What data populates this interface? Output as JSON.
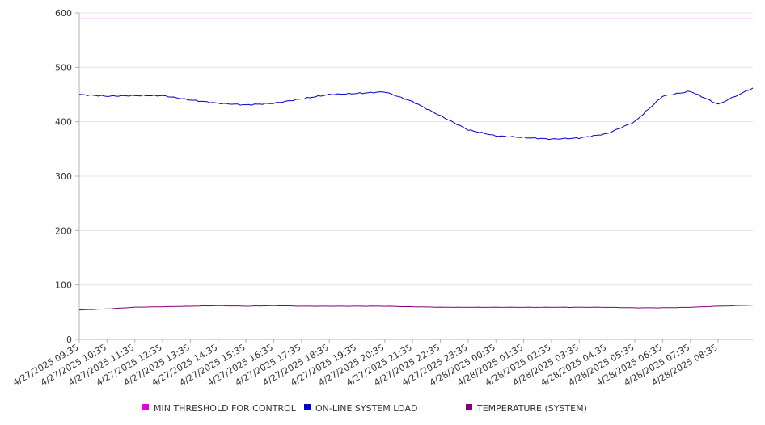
{
  "chart_data": {
    "type": "line",
    "title": "",
    "xlabel": "",
    "ylabel": "",
    "ylim": [
      0,
      600
    ],
    "yticks": [
      0,
      100,
      200,
      300,
      400,
      500,
      600
    ],
    "grid": true,
    "legend_position": "bottom",
    "x_tick_labels": [
      "4/27/2025 09:35",
      "4/27/2025 10:35",
      "4/27/2025 11:35",
      "4/27/2025 12:35",
      "4/27/2025 13:35",
      "4/27/2025 14:35",
      "4/27/2025 15:35",
      "4/27/2025 16:35",
      "4/27/2025 17:35",
      "4/27/2025 18:35",
      "4/27/2025 19:35",
      "4/27/2025 20:35",
      "4/27/2025 21:35",
      "4/27/2025 22:35",
      "4/27/2025 23:35",
      "4/28/2025 00:35",
      "4/28/2025 01:35",
      "4/28/2025 02:35",
      "4/28/2025 03:35",
      "4/28/2025 04:35",
      "4/28/2025 05:35",
      "4/28/2025 06:35",
      "4/28/2025 07:35",
      "4/28/2025 08:35"
    ],
    "x_hours": [
      0,
      1,
      2,
      3,
      4,
      5,
      6,
      7,
      8,
      9,
      10,
      11,
      12,
      13,
      14,
      15,
      16,
      17,
      18,
      19,
      20,
      21,
      22,
      23,
      24.25
    ],
    "series": [
      {
        "name": "MIN THRESHOLD FOR CONTROL",
        "color": "#e600e6",
        "values": [
          589,
          589,
          589,
          589,
          589,
          589,
          589,
          589,
          589,
          589,
          589,
          589,
          589,
          589,
          589,
          589,
          589,
          589,
          589,
          589,
          589,
          589,
          589,
          589,
          589
        ]
      },
      {
        "name": "ON-LINE SYSTEM LOAD",
        "color": "#0000cc",
        "values": [
          450,
          447,
          448,
          448,
          440,
          434,
          431,
          434,
          442,
          450,
          452,
          455,
          437,
          411,
          385,
          374,
          371,
          368,
          370,
          378,
          400,
          447,
          456,
          432,
          462
        ]
      },
      {
        "name": "TEMPERATURE (SYSTEM)",
        "color": "#800080",
        "values": [
          54,
          56,
          59,
          60,
          61,
          62,
          61,
          62,
          61,
          61,
          61,
          61,
          60,
          59,
          59,
          59,
          59,
          59,
          59,
          59,
          58,
          58,
          59,
          61,
          63
        ]
      }
    ]
  }
}
